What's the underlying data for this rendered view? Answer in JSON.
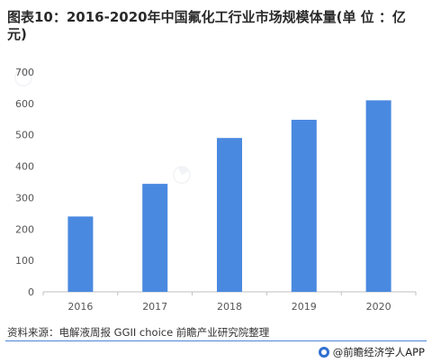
{
  "title": "图表10：2016-2020年中国氟化工行业市场规模体量(单 位 ：亿元)",
  "source": "资料来源：电解液周报 GGII choice 前瞻产业研究院整理",
  "brand": "@前瞻经济学人APP",
  "colors": {
    "bar": "#4a89e0",
    "axis": "#bfbfbf",
    "footer_rule": "#4a86d9"
  },
  "chart_data": {
    "type": "bar",
    "categories": [
      "2016",
      "2017",
      "2018",
      "2019",
      "2020"
    ],
    "values": [
      240,
      344,
      490,
      548,
      610
    ],
    "title": "",
    "xlabel": "",
    "ylabel": "",
    "ylim": [
      0,
      700
    ],
    "yticks": [
      0,
      100,
      200,
      300,
      400,
      500,
      600,
      700
    ],
    "grid": false,
    "legend": "none"
  }
}
